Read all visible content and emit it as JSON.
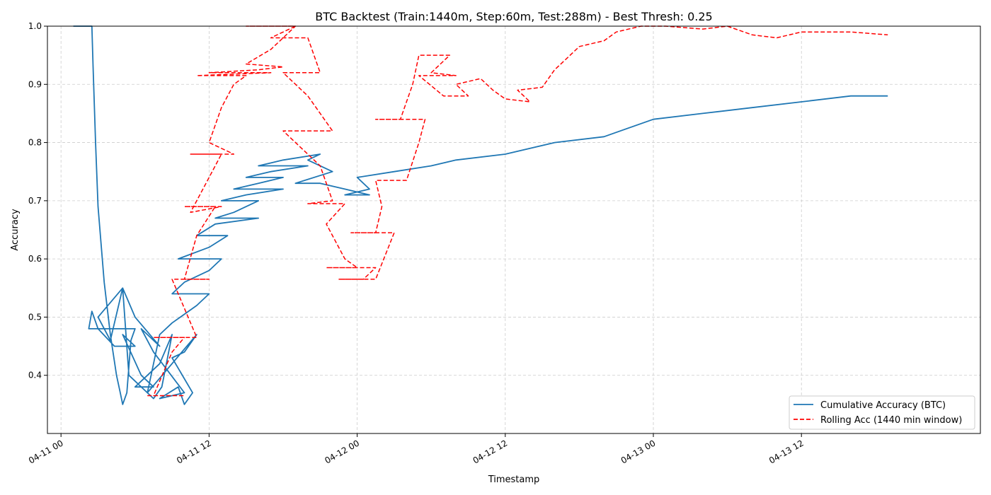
{
  "chart_data": {
    "type": "line",
    "title": "BTC Backtest (Train:1440m, Step:60m, Test:288m) - Best Thresh: 0.25",
    "xlabel": "Timestamp",
    "ylabel": "Accuracy",
    "xlim": [
      "04-10 22:54",
      "04-14 02:30"
    ],
    "ylim": [
      0.3,
      1.0
    ],
    "x_ticks": [
      "04-11 00",
      "04-11 12",
      "04-12 00",
      "04-12 12",
      "04-13 00",
      "04-13 12"
    ],
    "x_tick_times": [
      "04-11 00:00",
      "04-11 12:00",
      "04-12 00:00",
      "04-12 12:00",
      "04-13 00:00",
      "04-13 12:00"
    ],
    "y_ticks": [
      "0.4",
      "0.5",
      "0.6",
      "0.7",
      "0.8",
      "0.9",
      "1.0"
    ],
    "y_tick_values": [
      0.4,
      0.5,
      0.6,
      0.7,
      0.8,
      0.9,
      1.0
    ],
    "grid": true,
    "legend_position": "lower-right",
    "series": [
      {
        "name": "Cumulative Accuracy (BTC)",
        "style": "solid",
        "color": "#1f77b4",
        "points": [
          [
            "04-11 01:00",
            1.0
          ],
          [
            "04-11 02:30",
            1.0
          ],
          [
            "04-11 02:36",
            0.93
          ],
          [
            "04-11 02:48",
            0.8
          ],
          [
            "04-11 03:00",
            0.69
          ],
          [
            "04-11 03:30",
            0.56
          ],
          [
            "04-11 04:00",
            0.47
          ],
          [
            "04-11 04:30",
            0.4
          ],
          [
            "04-11 04:48",
            0.37
          ],
          [
            "04-11 05:00",
            0.35
          ],
          [
            "04-11 05:20",
            0.37
          ],
          [
            "04-11 05:40",
            0.46
          ],
          [
            "04-11 06:00",
            0.48
          ],
          [
            "04-11 02:15",
            0.48
          ],
          [
            "04-11 02:30",
            0.51
          ],
          [
            "04-11 03:00",
            0.48
          ],
          [
            "04-11 04:20",
            0.45
          ],
          [
            "04-11 06:00",
            0.45
          ],
          [
            "04-11 05:00",
            0.47
          ],
          [
            "04-11 06:30",
            0.4
          ],
          [
            "04-11 07:30",
            0.38
          ],
          [
            "04-11 06:00",
            0.38
          ],
          [
            "04-11 08:00",
            0.42
          ],
          [
            "04-11 09:00",
            0.47
          ],
          [
            "04-11 08:10",
            0.38
          ],
          [
            "04-11 07:30",
            0.36
          ],
          [
            "04-11 05:30",
            0.4
          ],
          [
            "04-11 05:00",
            0.55
          ],
          [
            "04-11 04:00",
            0.46
          ],
          [
            "04-11 03:00",
            0.5
          ],
          [
            "04-11 05:00",
            0.55
          ],
          [
            "04-11 06:00",
            0.5
          ],
          [
            "04-11 08:00",
            0.45
          ],
          [
            "04-11 06:30",
            0.48
          ],
          [
            "04-11 07:30",
            0.44
          ],
          [
            "04-11 10:00",
            0.37
          ],
          [
            "04-11 08:00",
            0.36
          ],
          [
            "04-11 09:30",
            0.38
          ],
          [
            "04-11 10:00",
            0.35
          ],
          [
            "04-11 10:40",
            0.37
          ],
          [
            "04-11 09:00",
            0.43
          ],
          [
            "04-11 10:00",
            0.44
          ],
          [
            "04-11 11:00",
            0.47
          ],
          [
            "04-11 07:00",
            0.37
          ],
          [
            "04-11 08:00",
            0.47
          ],
          [
            "04-11 09:00",
            0.49
          ],
          [
            "04-11 11:00",
            0.52
          ],
          [
            "04-11 12:00",
            0.54
          ],
          [
            "04-11 09:00",
            0.54
          ],
          [
            "04-11 10:00",
            0.56
          ],
          [
            "04-11 12:00",
            0.58
          ],
          [
            "04-11 13:00",
            0.6
          ],
          [
            "04-11 09:30",
            0.6
          ],
          [
            "04-11 12:00",
            0.62
          ],
          [
            "04-11 13:30",
            0.64
          ],
          [
            "04-11 11:00",
            0.64
          ],
          [
            "04-11 12:30",
            0.66
          ],
          [
            "04-11 16:00",
            0.67
          ],
          [
            "04-11 12:30",
            0.67
          ],
          [
            "04-11 14:00",
            0.68
          ],
          [
            "04-11 16:00",
            0.7
          ],
          [
            "04-11 13:00",
            0.7
          ],
          [
            "04-11 15:00",
            0.71
          ],
          [
            "04-11 18:00",
            0.72
          ],
          [
            "04-11 14:00",
            0.72
          ],
          [
            "04-11 16:00",
            0.73
          ],
          [
            "04-11 18:00",
            0.74
          ],
          [
            "04-11 15:00",
            0.74
          ],
          [
            "04-11 17:00",
            0.75
          ],
          [
            "04-11 20:00",
            0.76
          ],
          [
            "04-11 16:00",
            0.76
          ],
          [
            "04-11 18:00",
            0.77
          ],
          [
            "04-11 21:00",
            0.78
          ],
          [
            "04-11 20:00",
            0.77
          ],
          [
            "04-11 22:00",
            0.75
          ],
          [
            "04-11 19:00",
            0.73
          ],
          [
            "04-11 21:00",
            0.73
          ],
          [
            "04-11 23:00",
            0.72
          ],
          [
            "04-12 01:00",
            0.71
          ],
          [
            "04-11 23:00",
            0.71
          ],
          [
            "04-12 01:00",
            0.72
          ],
          [
            "04-12 00:00",
            0.74
          ],
          [
            "04-12 03:00",
            0.75
          ],
          [
            "04-12 06:00",
            0.76
          ],
          [
            "04-12 08:00",
            0.77
          ],
          [
            "04-12 12:00",
            0.78
          ],
          [
            "04-12 16:00",
            0.8
          ],
          [
            "04-12 20:00",
            0.81
          ],
          [
            "04-13 00:00",
            0.84
          ],
          [
            "04-13 04:00",
            0.85
          ],
          [
            "04-13 08:00",
            0.86
          ],
          [
            "04-13 12:00",
            0.87
          ],
          [
            "04-13 16:00",
            0.88
          ],
          [
            "04-13 19:00",
            0.88
          ]
        ]
      },
      {
        "name": "Rolling Acc (1440 min window)",
        "style": "dashed",
        "color": "#ff0000",
        "points": [
          [
            "04-11 07:00",
            0.365
          ],
          [
            "04-11 10:00",
            0.365
          ],
          [
            "04-11 07:30",
            0.365
          ],
          [
            "04-11 09:00",
            0.44
          ],
          [
            "04-11 10:00",
            0.465
          ],
          [
            "04-11 07:30",
            0.465
          ],
          [
            "04-11 11:00",
            0.465
          ],
          [
            "04-11 09:00",
            0.565
          ],
          [
            "04-11 12:00",
            0.565
          ],
          [
            "04-11 10:00",
            0.565
          ],
          [
            "04-11 11:00",
            0.64
          ],
          [
            "04-11 12:30",
            0.69
          ],
          [
            "04-11 10:00",
            0.69
          ],
          [
            "04-11 13:00",
            0.69
          ],
          [
            "04-11 10:30",
            0.68
          ],
          [
            "04-11 12:00",
            0.74
          ],
          [
            "04-11 13:00",
            0.78
          ],
          [
            "04-11 10:30",
            0.78
          ],
          [
            "04-11 14:00",
            0.78
          ],
          [
            "04-11 12:00",
            0.8
          ],
          [
            "04-11 13:00",
            0.86
          ],
          [
            "04-11 14:00",
            0.9
          ],
          [
            "04-11 15:00",
            0.915
          ],
          [
            "04-11 11:00",
            0.915
          ],
          [
            "04-11 17:00",
            0.92
          ],
          [
            "04-11 12:00",
            0.92
          ],
          [
            "04-11 16:00",
            0.925
          ],
          [
            "04-11 18:00",
            0.93
          ],
          [
            "04-11 15:00",
            0.935
          ],
          [
            "04-11 17:00",
            0.96
          ],
          [
            "04-11 19:00",
            1.0
          ],
          [
            "04-11 15:00",
            1.0
          ],
          [
            "04-11 19:00",
            1.0
          ],
          [
            "04-11 17:00",
            0.98
          ],
          [
            "04-11 20:00",
            0.98
          ],
          [
            "04-11 21:00",
            0.92
          ],
          [
            "04-11 18:00",
            0.92
          ],
          [
            "04-11 20:00",
            0.88
          ],
          [
            "04-11 22:00",
            0.82
          ],
          [
            "04-11 18:00",
            0.82
          ],
          [
            "04-11 21:00",
            0.76
          ],
          [
            "04-11 22:00",
            0.7
          ],
          [
            "04-11 20:00",
            0.695
          ],
          [
            "04-11 23:00",
            0.695
          ],
          [
            "04-11 21:30",
            0.66
          ],
          [
            "04-11 23:00",
            0.6
          ],
          [
            "04-12 00:00",
            0.585
          ],
          [
            "04-11 21:30",
            0.585
          ],
          [
            "04-12 01:30",
            0.585
          ],
          [
            "04-12 00:30",
            0.565
          ],
          [
            "04-11 22:30",
            0.565
          ],
          [
            "04-12 01:30",
            0.565
          ],
          [
            "04-12 03:00",
            0.645
          ],
          [
            "04-11 23:30",
            0.645
          ],
          [
            "04-12 01:30",
            0.645
          ],
          [
            "04-12 02:00",
            0.69
          ],
          [
            "04-12 01:30",
            0.735
          ],
          [
            "04-12 04:00",
            0.735
          ],
          [
            "04-12 05:00",
            0.8
          ],
          [
            "04-12 05:30",
            0.84
          ],
          [
            "04-12 01:30",
            0.84
          ],
          [
            "04-12 03:30",
            0.84
          ],
          [
            "04-12 04:30",
            0.9
          ],
          [
            "04-12 05:00",
            0.95
          ],
          [
            "04-12 07:30",
            0.95
          ],
          [
            "04-12 06:00",
            0.92
          ],
          [
            "04-12 08:00",
            0.915
          ],
          [
            "04-12 05:00",
            0.915
          ],
          [
            "04-12 07:00",
            0.88
          ],
          [
            "04-12 09:00",
            0.88
          ],
          [
            "04-12 08:00",
            0.9
          ],
          [
            "04-12 10:00",
            0.91
          ],
          [
            "04-12 11:00",
            0.89
          ],
          [
            "04-12 12:00",
            0.875
          ],
          [
            "04-12 14:00",
            0.87
          ],
          [
            "04-12 13:00",
            0.89
          ],
          [
            "04-12 15:00",
            0.895
          ],
          [
            "04-12 16:00",
            0.925
          ],
          [
            "04-12 17:00",
            0.945
          ],
          [
            "04-12 18:00",
            0.965
          ],
          [
            "04-12 20:00",
            0.975
          ],
          [
            "04-12 21:00",
            0.99
          ],
          [
            "04-12 23:00",
            1.0
          ],
          [
            "04-13 01:00",
            1.0
          ],
          [
            "04-13 04:00",
            0.995
          ],
          [
            "04-13 06:00",
            1.0
          ],
          [
            "04-13 08:00",
            0.985
          ],
          [
            "04-13 10:00",
            0.98
          ],
          [
            "04-13 12:00",
            0.99
          ],
          [
            "04-13 14:00",
            0.99
          ],
          [
            "04-13 16:00",
            0.99
          ],
          [
            "04-13 19:00",
            0.985
          ]
        ]
      }
    ]
  }
}
